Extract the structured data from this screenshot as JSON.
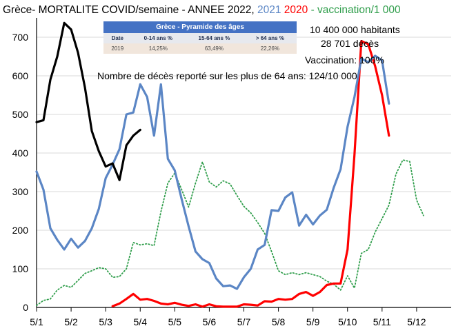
{
  "title": {
    "prefix": "Grèce- MORTALITE COVID/semaine -  ANNEE 2022, ",
    "year_2021": "2021",
    "year_2020": "2020",
    "vaccination": "- vaccination/1 000",
    "colors": {
      "y2022": "#000000",
      "y2021": "#5b86c5",
      "y2020": "#ff0000",
      "vaccination": "#2e9d4a"
    }
  },
  "pyramid_table": {
    "title": "Grèce - Pyramide des âges",
    "headers": [
      "Date",
      "0-14 ans %",
      "15-64 ans %",
      "> 64 ans %"
    ],
    "row": [
      "2019",
      "14,25%",
      "63,49%",
      "22,26%"
    ]
  },
  "info": {
    "population": "10 400 000 habitants",
    "deaths": "28 701 décès",
    "vaccination": "Vaccination: 100%",
    "elderly": "Nombre de décès reporté sur les plus de 64 ans: 124/10 000"
  },
  "chart_data": {
    "type": "line",
    "categories": [
      "5/1",
      "5/2",
      "5/3",
      "5/4",
      "5/5",
      "5/6",
      "5/7",
      "5/8",
      "5/9",
      "5/10",
      "5/11",
      "5/12"
    ],
    "ylim": [
      0,
      750
    ],
    "yticks": [
      0,
      100,
      200,
      300,
      400,
      500,
      600,
      700
    ],
    "grid": true,
    "series": [
      {
        "name": "2022",
        "color": "#000000",
        "style": "solid",
        "points": [
          [
            0,
            480
          ],
          [
            0.2,
            485
          ],
          [
            0.4,
            590
          ],
          [
            0.6,
            650
          ],
          [
            0.8,
            737
          ],
          [
            1.0,
            720
          ],
          [
            1.2,
            660
          ],
          [
            1.4,
            570
          ],
          [
            1.6,
            457
          ],
          [
            1.8,
            405
          ],
          [
            2.0,
            365
          ],
          [
            2.2,
            373
          ],
          [
            2.4,
            330
          ],
          [
            2.6,
            420
          ],
          [
            2.8,
            445
          ],
          [
            3.0,
            460
          ]
        ]
      },
      {
        "name": "2021",
        "color": "#5b86c5",
        "style": "solid",
        "points": [
          [
            0,
            352
          ],
          [
            0.2,
            305
          ],
          [
            0.4,
            205
          ],
          [
            0.6,
            175
          ],
          [
            0.8,
            150
          ],
          [
            1.0,
            178
          ],
          [
            1.2,
            155
          ],
          [
            1.4,
            172
          ],
          [
            1.6,
            205
          ],
          [
            1.8,
            255
          ],
          [
            2.0,
            335
          ],
          [
            2.2,
            370
          ],
          [
            2.4,
            410
          ],
          [
            2.6,
            500
          ],
          [
            2.8,
            505
          ],
          [
            3.0,
            578
          ],
          [
            3.2,
            545
          ],
          [
            3.4,
            445
          ],
          [
            3.6,
            578
          ],
          [
            3.8,
            385
          ],
          [
            4.0,
            355
          ],
          [
            4.2,
            280
          ],
          [
            4.4,
            210
          ],
          [
            4.6,
            145
          ],
          [
            4.8,
            125
          ],
          [
            5.0,
            115
          ],
          [
            5.2,
            75
          ],
          [
            5.4,
            55
          ],
          [
            5.6,
            57
          ],
          [
            5.8,
            48
          ],
          [
            6.0,
            78
          ],
          [
            6.2,
            100
          ],
          [
            6.4,
            150
          ],
          [
            6.6,
            162
          ],
          [
            6.8,
            252
          ],
          [
            7.0,
            250
          ],
          [
            7.2,
            285
          ],
          [
            7.4,
            298
          ],
          [
            7.6,
            212
          ],
          [
            7.8,
            240
          ],
          [
            8.0,
            215
          ],
          [
            8.2,
            238
          ],
          [
            8.4,
            253
          ],
          [
            8.6,
            310
          ],
          [
            8.8,
            358
          ],
          [
            9.0,
            468
          ],
          [
            9.2,
            545
          ],
          [
            9.4,
            645
          ],
          [
            9.6,
            635
          ],
          [
            9.8,
            652
          ],
          [
            10.0,
            640
          ],
          [
            10.2,
            528
          ]
        ]
      },
      {
        "name": "2020",
        "color": "#ff0000",
        "style": "solid",
        "points": [
          [
            2.2,
            3
          ],
          [
            2.4,
            10
          ],
          [
            2.6,
            22
          ],
          [
            2.8,
            35
          ],
          [
            3.0,
            20
          ],
          [
            3.2,
            22
          ],
          [
            3.4,
            17
          ],
          [
            3.6,
            10
          ],
          [
            3.8,
            8
          ],
          [
            4.0,
            12
          ],
          [
            4.2,
            7
          ],
          [
            4.4,
            4
          ],
          [
            4.6,
            8
          ],
          [
            4.8,
            2
          ],
          [
            5.0,
            8
          ],
          [
            5.2,
            3
          ],
          [
            5.4,
            2
          ],
          [
            5.6,
            2
          ],
          [
            5.8,
            2
          ],
          [
            6.0,
            8
          ],
          [
            6.2,
            7
          ],
          [
            6.4,
            5
          ],
          [
            6.6,
            16
          ],
          [
            6.8,
            15
          ],
          [
            7.0,
            22
          ],
          [
            7.2,
            20
          ],
          [
            7.4,
            22
          ],
          [
            7.6,
            35
          ],
          [
            7.8,
            40
          ],
          [
            8.0,
            30
          ],
          [
            8.2,
            40
          ],
          [
            8.4,
            58
          ],
          [
            8.6,
            62
          ],
          [
            8.8,
            62
          ],
          [
            9.0,
            150
          ],
          [
            9.2,
            395
          ],
          [
            9.4,
            690
          ],
          [
            9.6,
            682
          ],
          [
            9.8,
            625
          ],
          [
            10.0,
            550
          ],
          [
            10.2,
            445
          ]
        ]
      },
      {
        "name": "vaccination/1 000",
        "color": "#2e9d4a",
        "style": "dotted",
        "points": [
          [
            0,
            5
          ],
          [
            0.2,
            18
          ],
          [
            0.4,
            22
          ],
          [
            0.6,
            45
          ],
          [
            0.8,
            57
          ],
          [
            1.0,
            52
          ],
          [
            1.2,
            70
          ],
          [
            1.4,
            88
          ],
          [
            1.6,
            95
          ],
          [
            1.8,
            103
          ],
          [
            2.0,
            100
          ],
          [
            2.2,
            78
          ],
          [
            2.4,
            80
          ],
          [
            2.6,
            100
          ],
          [
            2.8,
            168
          ],
          [
            3.0,
            162
          ],
          [
            3.2,
            165
          ],
          [
            3.4,
            160
          ],
          [
            3.6,
            248
          ],
          [
            3.8,
            322
          ],
          [
            4.0,
            348
          ],
          [
            4.2,
            305
          ],
          [
            4.4,
            260
          ],
          [
            4.6,
            322
          ],
          [
            4.8,
            377
          ],
          [
            5.0,
            325
          ],
          [
            5.2,
            312
          ],
          [
            5.4,
            328
          ],
          [
            5.6,
            320
          ],
          [
            5.8,
            290
          ],
          [
            6.0,
            262
          ],
          [
            6.2,
            245
          ],
          [
            6.4,
            220
          ],
          [
            6.6,
            192
          ],
          [
            6.8,
            145
          ],
          [
            7.0,
            95
          ],
          [
            7.2,
            85
          ],
          [
            7.4,
            90
          ],
          [
            7.6,
            85
          ],
          [
            7.8,
            90
          ],
          [
            8.0,
            85
          ],
          [
            8.2,
            80
          ],
          [
            8.4,
            68
          ],
          [
            8.6,
            60
          ],
          [
            8.8,
            45
          ],
          [
            9.0,
            82
          ],
          [
            9.2,
            50
          ],
          [
            9.4,
            140
          ],
          [
            9.6,
            150
          ],
          [
            9.8,
            195
          ],
          [
            10.0,
            230
          ],
          [
            10.2,
            265
          ],
          [
            10.4,
            345
          ],
          [
            10.6,
            382
          ],
          [
            10.8,
            378
          ],
          [
            11.0,
            278
          ],
          [
            11.2,
            238
          ]
        ]
      }
    ]
  }
}
